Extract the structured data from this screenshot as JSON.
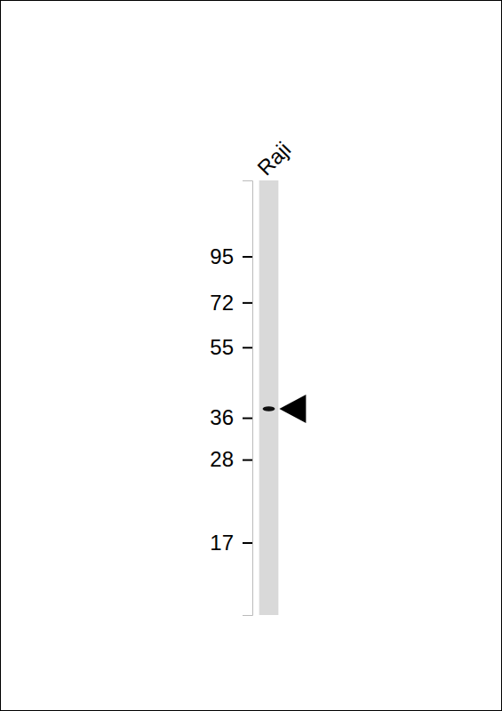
{
  "chart_data": {
    "type": "western_blot",
    "categories": [
      "Raji"
    ],
    "values": [
      38
    ],
    "color": "#111111",
    "log": "y",
    "ylim": [
      11,
      150
    ],
    "yticks": [
      95,
      72,
      55,
      36,
      28,
      17
    ]
  }
}
